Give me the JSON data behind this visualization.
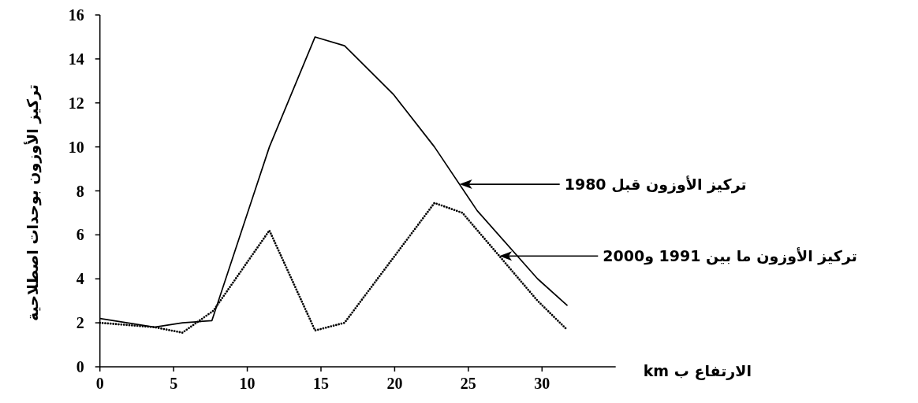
{
  "chart_data": {
    "type": "line",
    "xlabel": "الارتفاع ب km",
    "ylabel": "تركيز الأوزون بوحدات اصطلاحية",
    "xlim": [
      0,
      35
    ],
    "ylim": [
      0,
      16
    ],
    "xticks": [
      0,
      5,
      10,
      15,
      20,
      25,
      30
    ],
    "yticks": [
      0,
      2,
      4,
      6,
      8,
      10,
      12,
      14,
      16
    ],
    "series": [
      {
        "name": "تركيز الأوزون قبل 1980",
        "color": "#000000",
        "line_style": "solid",
        "x": [
          0,
          3.7,
          5.6,
          7.6,
          11.5,
          14.6,
          16.6,
          19.9,
          22.7,
          25.6,
          29.7,
          31.7
        ],
        "values": [
          2.2,
          1.8,
          2.0,
          2.1,
          10.0,
          15.0,
          14.6,
          12.4,
          10.0,
          7.1,
          4.0,
          2.8
        ]
      },
      {
        "name": "تركيز الأوزون ما بين 1991 و2000",
        "color": "#000000",
        "line_style": "dotted",
        "x": [
          0,
          3.7,
          5.6,
          7.7,
          11.5,
          14.6,
          16.6,
          22.7,
          24.6,
          29.7,
          31.6
        ],
        "values": [
          2.0,
          1.8,
          1.55,
          2.55,
          6.2,
          1.65,
          2.0,
          7.45,
          7.0,
          3.0,
          1.75
        ]
      }
    ]
  }
}
